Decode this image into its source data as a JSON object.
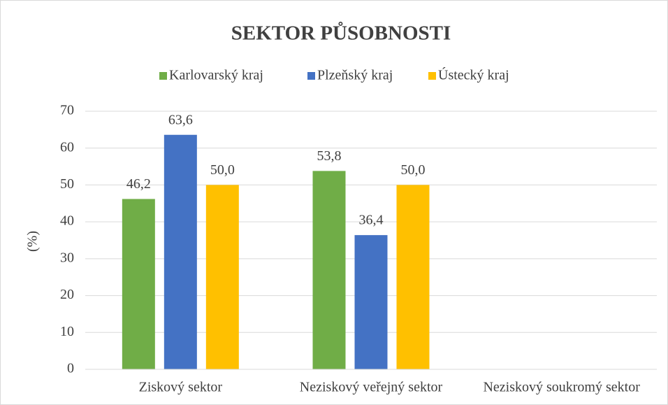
{
  "chart_data": {
    "type": "bar",
    "title": "SEKTOR PŮSOBNOSTI",
    "y_label": "(%)",
    "categories": [
      "Ziskový sektor",
      "Neziskový veřejný sektor",
      "Neziskový soukromý sektor"
    ],
    "series": [
      {
        "name": "Karlovarský kraj",
        "color": "#70ad47",
        "values": [
          46.2,
          53.8,
          null
        ],
        "value_labels": [
          "46,2",
          "53,8",
          null
        ]
      },
      {
        "name": "Plzeňský kraj",
        "color": "#4472c4",
        "values": [
          63.6,
          36.4,
          null
        ],
        "value_labels": [
          "63,6",
          "36,4",
          null
        ]
      },
      {
        "name": "Ústecký kraj",
        "color": "#ffc000",
        "values": [
          50,
          50,
          null
        ],
        "value_labels": [
          "50,0",
          "50,0",
          null
        ]
      }
    ],
    "ylim": [
      0,
      70
    ],
    "yticks": [
      0,
      10,
      20,
      30,
      40,
      50,
      60,
      70
    ],
    "grid": true,
    "legend": "top"
  }
}
